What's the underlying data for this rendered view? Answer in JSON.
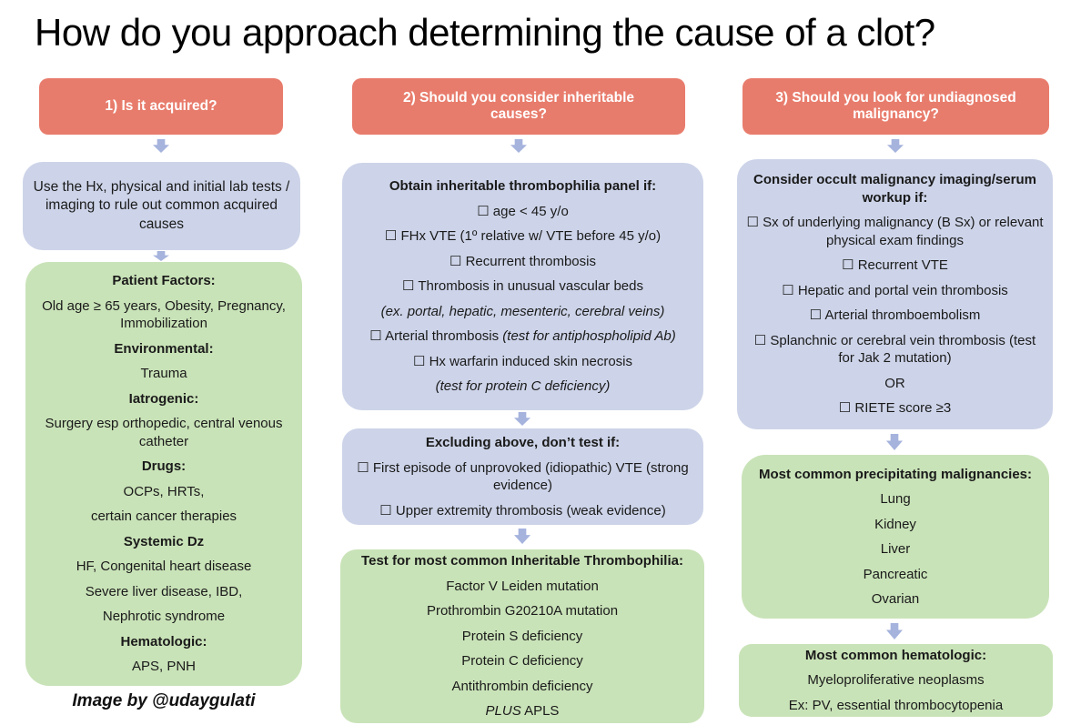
{
  "title": "How do you approach determining the cause of a clot?",
  "credit": "Image by @udaygulati",
  "colors": {
    "header_bg": "#E87C6C",
    "header_text": "#FFFFFF",
    "blue_box_bg": "#CDD4E9",
    "green_box_bg": "#C9E3B8",
    "arrow": "#A5B3DD",
    "body_text": "#1A1A1A",
    "background": "#FFFFFF"
  },
  "columns": [
    {
      "header": "1) Is it acquired?",
      "instructions_box": [
        {
          "t": "Use the Hx, physical and initial lab tests / imaging to rule out common acquired causes"
        }
      ],
      "acquired_causes_box": [
        {
          "t": "Patient Factors:",
          "s": "b"
        },
        {
          "t": "Old age ≥ 65 years, Obesity, Pregnancy, Immobilization"
        },
        {
          "t": "Environmental:",
          "s": "b"
        },
        {
          "t": "Trauma"
        },
        {
          "t": "Iatrogenic:",
          "s": "b"
        },
        {
          "t": "Surgery esp orthopedic, central venous catheter"
        },
        {
          "t": "Drugs:",
          "s": "b"
        },
        {
          "t": "OCPs, HRTs,"
        },
        {
          "t": "certain cancer therapies"
        },
        {
          "t": "Systemic Dz",
          "s": "b"
        },
        {
          "t": "HF, Congenital heart disease"
        },
        {
          "t": "Severe liver disease, IBD,"
        },
        {
          "t": "Nephrotic syndrome"
        },
        {
          "t": "Hematologic:",
          "s": "b"
        },
        {
          "t": "APS, PNH"
        }
      ]
    },
    {
      "header": "2) Should you consider inheritable causes?",
      "panel_criteria_box": [
        {
          "t": "Obtain inheritable thrombophilia panel if:",
          "s": "b"
        },
        {
          "t": "☐ age < 45 y/o"
        },
        {
          "t": "☐ FHx VTE (1º relative w/ VTE before 45 y/o)"
        },
        {
          "t": "☐ Recurrent thrombosis"
        },
        {
          "t": "☐ Thrombosis in unusual vascular beds"
        },
        {
          "t": "(ex. portal, hepatic, mesenteric, cerebral veins)",
          "s": "i"
        },
        {
          "seg": [
            {
              "t": "☐ Arterial thrombosis "
            },
            {
              "t": "(test for antiphospholipid Ab)",
              "s": "i"
            }
          ]
        },
        {
          "t": "☐ Hx warfarin induced skin necrosis"
        },
        {
          "t": "(test for protein C deficiency)",
          "s": "i"
        }
      ],
      "dont_test_box": [
        {
          "t": "Excluding above, don’t test if:",
          "s": "b"
        },
        {
          "t": "☐ First episode of unprovoked (idiopathic) VTE (strong evidence)"
        },
        {
          "t": "☐ Upper extremity thrombosis (weak evidence)"
        }
      ],
      "inheritable_thrombophilia_box": [
        {
          "t": "Test for most common Inheritable Thrombophilia:",
          "s": "b"
        },
        {
          "t": "Factor V Leiden mutation"
        },
        {
          "t": "Prothrombin G20210A mutation"
        },
        {
          "t": "Protein S deficiency"
        },
        {
          "t": "Protein C deficiency"
        },
        {
          "t": "Antithrombin deficiency"
        },
        {
          "seg": [
            {
              "t": "PLUS",
              "s": "i"
            },
            {
              "t": " APLS"
            }
          ]
        }
      ]
    },
    {
      "header": "3) Should you look for undiagnosed malignancy?",
      "malignancy_workup_box": [
        {
          "t": "Consider occult malignancy imaging/serum workup if:",
          "s": "b"
        },
        {
          "t": "☐ Sx of underlying malignancy (B Sx) or relevant physical exam findings"
        },
        {
          "t": "☐ Recurrent VTE"
        },
        {
          "t": "☐ Hepatic and portal vein thrombosis"
        },
        {
          "t": "☐ Arterial thromboembolism"
        },
        {
          "t": "☐ Splanchnic or cerebral vein thrombosis (test for Jak 2 mutation)"
        },
        {
          "t": "OR"
        },
        {
          "t": "☐ RIETE score ≥3"
        }
      ],
      "common_malignancies_box": [
        {
          "t": "Most common precipitating malignancies:",
          "s": "b"
        },
        {
          "t": "Lung"
        },
        {
          "t": "Kidney"
        },
        {
          "t": "Liver"
        },
        {
          "t": "Pancreatic"
        },
        {
          "t": "Ovarian"
        }
      ],
      "hematologic_box": [
        {
          "t": "Most common hematologic:",
          "s": "b"
        },
        {
          "t": "Myeloproliferative neoplasms"
        },
        {
          "t": "Ex: PV, essential thrombocytopenia"
        }
      ]
    }
  ]
}
